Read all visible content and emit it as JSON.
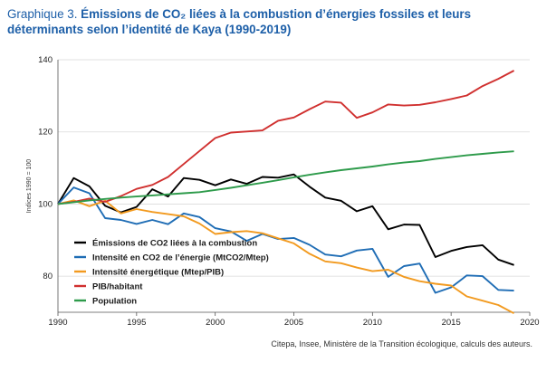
{
  "figure": {
    "title_prefix": "Graphique 3.",
    "title_main": "Émissions de CO₂ liées à la combustion d’énergies fossiles et leurs déterminants selon l’identité de Kaya (1990-2019)",
    "source": "Citepa, Insee, Ministère de la Transition écologique, calculs des auteurs."
  },
  "chart_data": {
    "type": "line",
    "ylabel": "Indices 1990 = 100",
    "xlim": [
      1990,
      2020
    ],
    "ylim": [
      70,
      140
    ],
    "xticks": [
      1990,
      1995,
      2000,
      2005,
      2010,
      2015,
      2020
    ],
    "yticks": [
      80,
      100,
      120,
      140
    ],
    "grid": "horizontal",
    "legend_position": "lower-left",
    "x": [
      1990,
      1991,
      1992,
      1993,
      1994,
      1995,
      1996,
      1997,
      1998,
      1999,
      2000,
      2001,
      2002,
      2003,
      2004,
      2005,
      2006,
      2007,
      2008,
      2009,
      2010,
      2011,
      2012,
      2013,
      2014,
      2015,
      2016,
      2017,
      2018,
      2019
    ],
    "series": [
      {
        "name": "Émissions de CO2 liées à la combustion",
        "color": "#000000",
        "values": [
          100,
          107.2,
          104.9,
          99.5,
          97.7,
          99.2,
          104.1,
          102.1,
          107.2,
          106.7,
          105.2,
          106.8,
          105.6,
          107.5,
          107.3,
          108.2,
          104.8,
          101.8,
          100.9,
          98.0,
          99.4,
          93.0,
          94.3,
          94.2,
          85.3,
          87.0,
          88.1,
          88.6,
          84.6,
          83.1
        ]
      },
      {
        "name": "Intensité en CO2 de l’énergie (MtCO2/Mtep)",
        "color": "#1f6db5",
        "values": [
          100,
          104.6,
          103.0,
          96.1,
          95.6,
          94.5,
          95.6,
          94.4,
          97.4,
          96.4,
          93.3,
          92.4,
          89.8,
          91.7,
          90.3,
          90.6,
          88.7,
          86.0,
          85.5,
          87.1,
          87.6,
          79.8,
          82.8,
          83.5,
          75.4,
          76.9,
          80.2,
          80.0,
          76.2,
          76.0
        ]
      },
      {
        "name": "Intensité énergétique (Mtep/PIB)",
        "color": "#f29a1f",
        "values": [
          100,
          101.0,
          99.4,
          100.9,
          97.4,
          98.6,
          97.8,
          97.2,
          96.6,
          94.6,
          91.7,
          92.2,
          92.5,
          91.9,
          90.5,
          89.1,
          86.2,
          84.1,
          83.6,
          82.4,
          81.4,
          81.8,
          79.8,
          78.6,
          77.9,
          77.4,
          74.4,
          73.2,
          72.0,
          69.7
        ]
      },
      {
        "name": "PIB/habitant",
        "color": "#d0302f",
        "values": [
          100,
          100.6,
          101.5,
          100.6,
          102.2,
          104.2,
          105.3,
          107.5,
          111.1,
          114.7,
          118.3,
          119.8,
          120.1,
          120.4,
          123.1,
          124.0,
          126.3,
          128.4,
          128.1,
          123.9,
          125.4,
          127.6,
          127.3,
          127.5,
          128.2,
          129.1,
          130.1,
          132.7,
          134.7,
          137.0
        ]
      },
      {
        "name": "Population",
        "color": "#2e9b4b",
        "values": [
          100,
          100.5,
          101.0,
          101.4,
          101.8,
          102.1,
          102.4,
          102.7,
          103.0,
          103.3,
          103.9,
          104.5,
          105.2,
          105.9,
          106.6,
          107.4,
          108.1,
          108.8,
          109.4,
          109.9,
          110.4,
          111.0,
          111.5,
          111.9,
          112.5,
          113.0,
          113.5,
          113.9,
          114.3,
          114.6
        ]
      }
    ]
  }
}
